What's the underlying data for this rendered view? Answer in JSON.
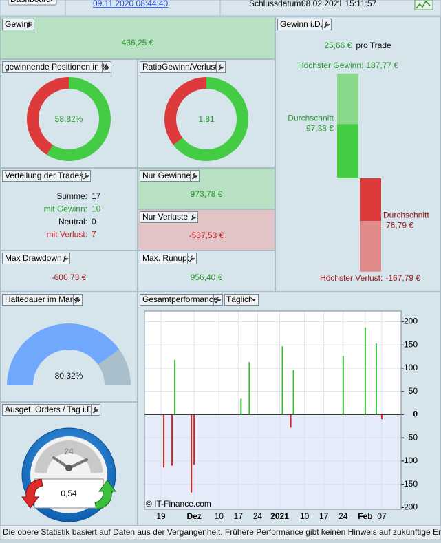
{
  "toolbar": {
    "menu": "Dashboard",
    "start_date": "09.11.2020 08:44:40",
    "end_label": "Schlussdatum:",
    "end_date": "08.02.2021 15:11:57"
  },
  "gewinn": {
    "title": "Gewinn",
    "value": "436,25 €"
  },
  "trades": {
    "title": "Verteilung der Trades",
    "rows": [
      {
        "label": "Summe:",
        "value": 17
      },
      {
        "label": "mit Gewinn:",
        "value": 10
      },
      {
        "label": "Neutral:",
        "value": 0
      },
      {
        "label": "mit Verlust:",
        "value": 7
      }
    ]
  },
  "nur_gewinne": {
    "title": "Nur Gewinne",
    "value": "973,78 €"
  },
  "nur_verluste": {
    "title": "Nur Verluste",
    "value": "-537,53 €"
  },
  "max_drawdown": {
    "title": "Max Drawdown",
    "value": "-600,73 €"
  },
  "max_runup": {
    "title": "Max. Runup:",
    "value": "956,40 €"
  },
  "orders": {
    "title": "Ausgef. Orders / Tag i.D.",
    "dial": "24",
    "value": "0,54"
  },
  "chart_data": [
    {
      "type": "donut",
      "title": "gewinnende Positionen in %",
      "values": [
        58.82
      ],
      "value_labels": [
        "58,82%"
      ],
      "colors": [
        "#44cc44",
        "#dd3b3b"
      ]
    },
    {
      "type": "ratio-donut",
      "title": "RatioGewinn/Verlust",
      "values": [
        1.81
      ],
      "value_labels": [
        "1,81"
      ],
      "colors": [
        "#44cc44",
        "#dd3b3b"
      ]
    },
    {
      "type": "range-bar",
      "title": "Gewinn i.D.",
      "headline": "25,66 €",
      "headline_unit": "pro Trade",
      "series": [
        {
          "name": "Höchster Gewinn:",
          "values": [
            187.77
          ],
          "value_labels": [
            "187,77 €"
          ],
          "color": "#8ad88a"
        },
        {
          "name": "Durchschnitt",
          "values": [
            97.38
          ],
          "value_labels": [
            "97,38 €"
          ],
          "color": "#44cc44"
        },
        {
          "name": "Durchschnitt",
          "values": [
            -76.79
          ],
          "value_labels": [
            "-76,79 €"
          ],
          "color": "#dd3b3b"
        },
        {
          "name": "Höchster Verlust:",
          "values": [
            -167.79
          ],
          "value_labels": [
            "-167,79 €"
          ],
          "color": "#e08a8a"
        }
      ]
    },
    {
      "type": "gauge",
      "title": "Haltedauer im Markt",
      "values": [
        80.32
      ],
      "value_labels": [
        "80,32%"
      ],
      "colors": [
        "#6fa8fc",
        "#a9bfcc"
      ]
    },
    {
      "type": "bar",
      "title": "Gesamtperformance",
      "period": "Täglich",
      "credit": "© IT-Finance.com",
      "x": [
        "2020-11-20",
        "2020-11-23",
        "2020-11-24",
        "2020-11-30",
        "2020-12-01",
        "2020-12-18",
        "2020-12-21",
        "2021-01-02",
        "2021-01-05",
        "2021-01-06",
        "2021-01-24",
        "2021-02-01",
        "2021-02-05",
        "2021-02-07"
      ],
      "values": [
        -114,
        -110,
        118,
        -167.79,
        -108,
        34,
        113,
        147,
        -28,
        96,
        126,
        187.77,
        153,
        -10
      ],
      "colors": [
        "#33bb33",
        "#cc2222"
      ],
      "xlim": [
        "2020-11-13",
        "2021-02-14"
      ],
      "xticks": [
        {
          "value": "2020-11-19",
          "label": "19"
        },
        {
          "value": "2020-12-01",
          "label": "Dez"
        },
        {
          "value": "2020-12-10",
          "label": "10"
        },
        {
          "value": "2020-12-17",
          "label": "17"
        },
        {
          "value": "2020-12-24",
          "label": "24"
        },
        {
          "value": "2021-01-01",
          "label": "2021"
        },
        {
          "value": "2021-01-10",
          "label": "10"
        },
        {
          "value": "2021-01-17",
          "label": "17"
        },
        {
          "value": "2021-01-24",
          "label": "24"
        },
        {
          "value": "2021-02-01",
          "label": "Feb"
        },
        {
          "value": "2021-02-07",
          "label": "07"
        }
      ],
      "ylim": [
        -204,
        223
      ],
      "yticks": [
        200,
        150,
        100,
        50,
        0,
        -50,
        -100,
        -150,
        -200
      ],
      "grid": true
    }
  ],
  "footer": "Die obere Statistik basiert auf Daten aus der Vergangenheit. Frühere Performance gibt keinen Hinweis auf zukünftige Ergebnisse."
}
